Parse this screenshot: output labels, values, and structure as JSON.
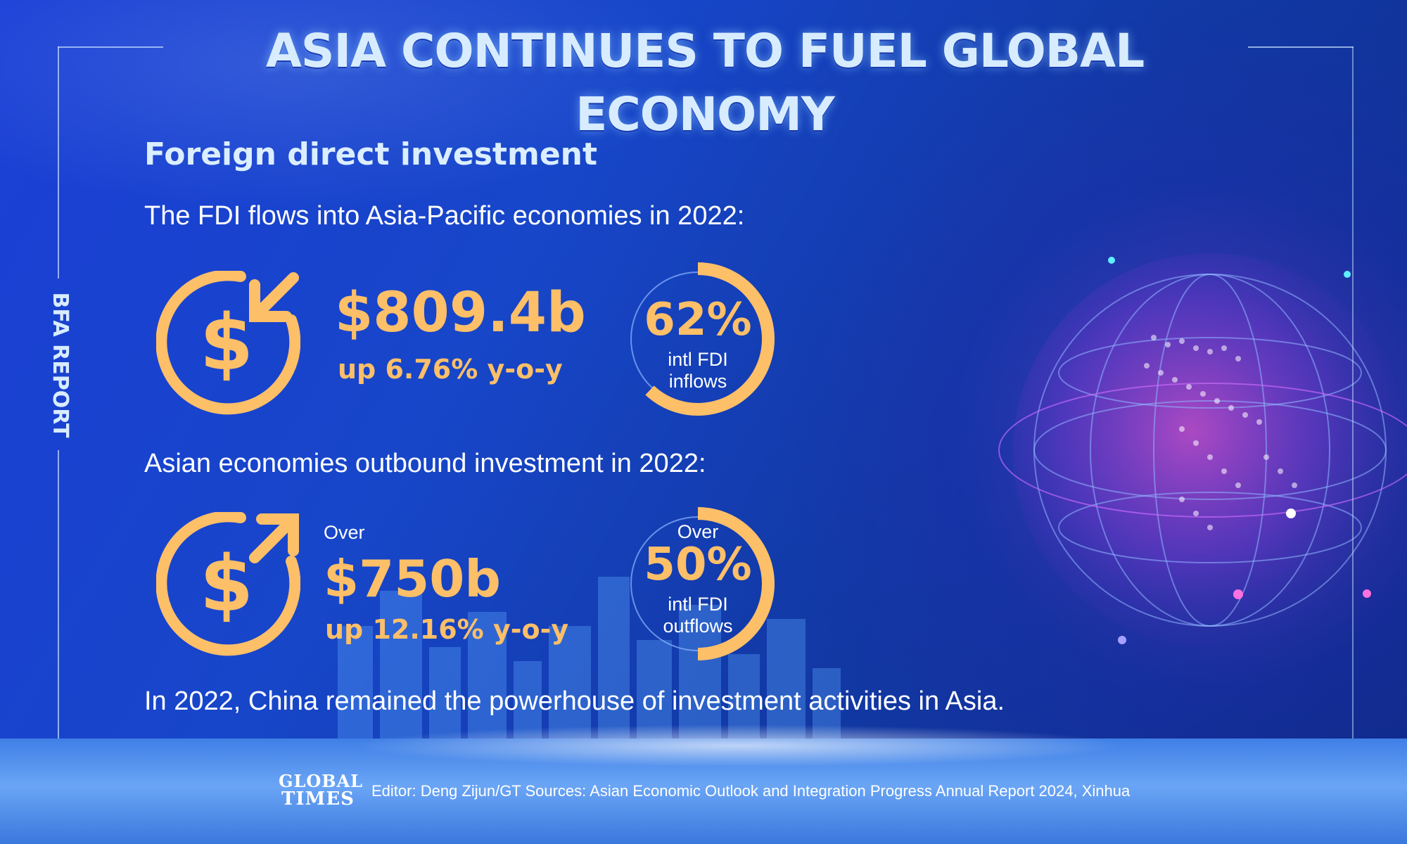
{
  "title": "ASIA CONTINUES TO FUEL GLOBAL ECONOMY",
  "side_label": "BFA REPORT",
  "section_title": "Foreign direct investment",
  "inflow": {
    "intro": "The FDI flows into Asia-Pacific economies in 2022:",
    "amount": "$809.4b",
    "growth": "up 6.76% y-o-y",
    "share_pct": "62%",
    "share_value": 62,
    "share_caption_1": "intl FDI",
    "share_caption_2": "inflows",
    "icon": "dollar-inbound-arrow-icon"
  },
  "outflow": {
    "intro": "Asian economies outbound investment in 2022:",
    "amount_prefix": "Over",
    "amount": "$750b",
    "growth": "up 12.16% y-o-y",
    "share_prefix": "Over",
    "share_pct": "50%",
    "share_value": 50,
    "share_caption_1": "intl FDI",
    "share_caption_2": "outflows",
    "icon": "dollar-outbound-arrow-icon"
  },
  "footer_note": "In 2022, China remained the powerhouse of investment activities in Asia.",
  "logo": {
    "line1": "GLOBAL",
    "line2": "TIMES"
  },
  "credits": "Editor: Deng Zijun/GT  Sources: Asian Economic Outlook and Integration Progress Annual Report 2024, Xinhua",
  "colors": {
    "accent": "#fdbf68",
    "background": "#1746c9",
    "title": "#d8ecff"
  }
}
